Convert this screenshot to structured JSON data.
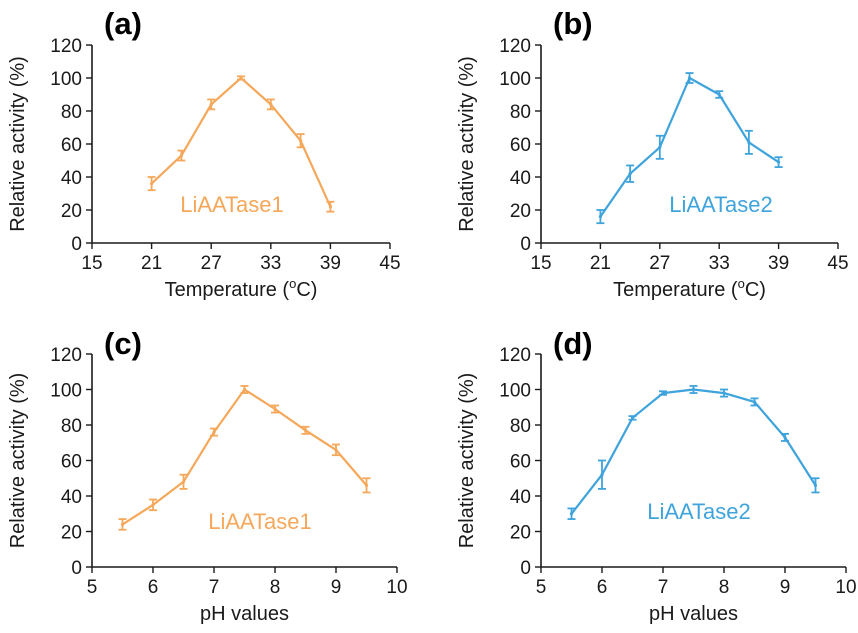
{
  "chart_data": [
    {
      "type": "line",
      "panel_label": "(a)",
      "series_label": "LiAATase1",
      "color": "#f5a75a",
      "xlabel": "Temperature (",
      "xlabel_sup": "o",
      "xlabel_tail": "C)",
      "ylabel": "Relative activity (%)",
      "xlim": [
        15,
        45
      ],
      "ylim": [
        0,
        120
      ],
      "xticks": [
        15,
        21,
        27,
        33,
        39,
        45
      ],
      "yticks": [
        0,
        20,
        40,
        60,
        80,
        100,
        120
      ],
      "x": [
        21,
        24,
        27,
        30,
        33,
        36,
        39
      ],
      "y": [
        36,
        53,
        84,
        100,
        84,
        62,
        22
      ],
      "err": [
        4,
        3,
        3,
        1,
        3,
        4,
        3
      ]
    },
    {
      "type": "line",
      "panel_label": "(b)",
      "series_label": "LiAATase2",
      "color": "#3fa3dc",
      "xlabel": "Temperature (",
      "xlabel_sup": "o",
      "xlabel_tail": "C)",
      "ylabel": "Relative activity (%)",
      "xlim": [
        15,
        45
      ],
      "ylim": [
        0,
        120
      ],
      "xticks": [
        15,
        21,
        27,
        33,
        39,
        45
      ],
      "yticks": [
        0,
        20,
        40,
        60,
        80,
        100,
        120
      ],
      "x": [
        21,
        24,
        27,
        30,
        33,
        36,
        39
      ],
      "y": [
        16,
        42,
        58,
        100,
        90,
        61,
        49
      ],
      "err": [
        4,
        5,
        7,
        3,
        2,
        7,
        3
      ]
    },
    {
      "type": "line",
      "panel_label": "(c)",
      "series_label": "LiAATase1",
      "color": "#f5a75a",
      "xlabel": "pH values",
      "ylabel": "Relative activity (%)",
      "xlim": [
        5,
        10
      ],
      "ylim": [
        0,
        120
      ],
      "xticks": [
        5,
        6,
        7,
        8,
        9,
        10
      ],
      "yticks": [
        0,
        20,
        40,
        60,
        80,
        100,
        120
      ],
      "x": [
        5.5,
        6,
        6.5,
        7,
        7.5,
        8,
        8.5,
        9,
        9.5
      ],
      "y": [
        24,
        35,
        48,
        76,
        100,
        89,
        77,
        66,
        46
      ],
      "err": [
        3,
        3,
        4,
        2,
        2,
        2,
        2,
        3,
        4
      ]
    },
    {
      "type": "line",
      "panel_label": "(d)",
      "series_label": "LiAATase2",
      "color": "#3fa3dc",
      "xlabel": "pH values",
      "ylabel": "Relative activity (%)",
      "xlim": [
        5,
        10
      ],
      "ylim": [
        0,
        120
      ],
      "xticks": [
        5,
        6,
        7,
        8,
        9,
        10
      ],
      "yticks": [
        0,
        20,
        40,
        60,
        80,
        100,
        120
      ],
      "x": [
        5.5,
        6,
        6.5,
        7,
        7.5,
        8,
        8.5,
        9,
        9.5
      ],
      "y": [
        30,
        52,
        84,
        98,
        100,
        98,
        93,
        73,
        46
      ],
      "err": [
        3,
        8,
        1,
        1,
        2,
        2,
        2,
        2,
        4
      ]
    }
  ]
}
